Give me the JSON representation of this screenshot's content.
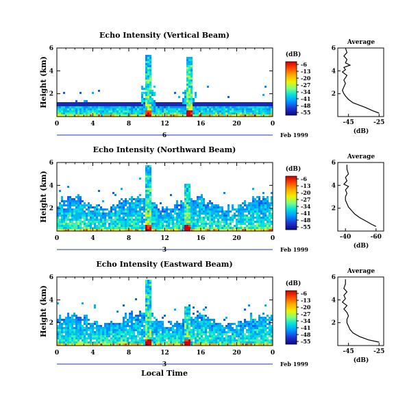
{
  "x_axis_label": "Local Time",
  "date_label": "Feb 1999",
  "chart_data": [
    {
      "type": "heatmap",
      "title": "Echo Intensity (Vertical Beam)",
      "ylabel": "Height (km)",
      "x_ticks": [
        "0",
        "4",
        "8",
        "12",
        "16",
        "20",
        "0"
      ],
      "y_ticks": [
        "2",
        "4",
        "6"
      ],
      "xlim": [
        0,
        24
      ],
      "ylim": [
        0,
        6
      ],
      "day_label": "6",
      "colorbar": {
        "unit": "(dB)",
        "ticks": [
          "-6",
          "-13",
          "-20",
          "-27",
          "-34",
          "-41",
          "-48",
          "-55"
        ]
      },
      "tower_events": [
        {
          "hour": 10,
          "top_km": 5.5
        },
        {
          "hour": 14.6,
          "top_km": 5.3
        }
      ],
      "profile": {
        "title": "Average",
        "xlabel": "(dB)",
        "x_ticks": [
          "-45",
          "-25"
        ],
        "xlim": [
          -52,
          -22
        ],
        "y_ticks": [
          "2",
          "4",
          "6"
        ],
        "ylim": [
          0,
          6
        ],
        "heights": [
          0.3,
          0.5,
          0.8,
          1.0,
          1.2,
          1.5,
          1.8,
          2.0,
          2.3,
          2.6,
          2.9,
          3.2,
          3.4,
          3.6,
          3.9,
          4.1,
          4.3,
          4.5,
          4.7,
          5.0,
          5.3,
          5.6,
          6.0
        ],
        "values": [
          -25,
          -29,
          -34,
          -38,
          -42,
          -45,
          -47,
          -48,
          -49,
          -48,
          -47,
          -48,
          -47,
          -46,
          -49,
          -47,
          -48,
          -44,
          -47,
          -46,
          -48,
          -46,
          -47
        ]
      }
    },
    {
      "type": "heatmap",
      "title": "Echo Intensity (Northward Beam)",
      "ylabel": "Height (km)",
      "x_ticks": [
        "0",
        "4",
        "8",
        "12",
        "16",
        "20",
        "0"
      ],
      "y_ticks": [
        "2",
        "4",
        "6"
      ],
      "xlim": [
        0,
        24
      ],
      "ylim": [
        0,
        6
      ],
      "day_label": "3",
      "colorbar": {
        "unit": "(dB)",
        "ticks": [
          "-6",
          "-13",
          "-20",
          "-27",
          "-34",
          "-41",
          "-48",
          "-55"
        ]
      },
      "tower_events": [
        {
          "hour": 10,
          "top_km": 5.8
        },
        {
          "hour": 14.5,
          "top_km": 4.2
        }
      ],
      "profile": {
        "title": "Average",
        "xlabel": "(dB)",
        "x_ticks": [
          "-40",
          "-60"
        ],
        "xlim": [
          -35,
          -65
        ],
        "y_ticks": [
          "2",
          "4",
          "6"
        ],
        "ylim": [
          0,
          6
        ],
        "heights": [
          0.4,
          0.6,
          0.9,
          1.2,
          1.5,
          1.8,
          2.1,
          2.4,
          2.7,
          3.0,
          3.3,
          3.6,
          3.9,
          4.1,
          4.4,
          4.7,
          5.0,
          5.4,
          5.8
        ],
        "values": [
          -60,
          -57,
          -53,
          -49,
          -46,
          -44,
          -42,
          -41,
          -40,
          -40,
          -41,
          -40,
          -42,
          -39,
          -41,
          -40,
          -42,
          -41,
          -41
        ]
      }
    },
    {
      "type": "heatmap",
      "title": "Echo Intensity (Eastward Beam)",
      "ylabel": "Height (km)",
      "x_ticks": [
        "0",
        "4",
        "8",
        "12",
        "16",
        "20",
        "0"
      ],
      "y_ticks": [
        "2",
        "4",
        "6"
      ],
      "xlim": [
        0,
        24
      ],
      "ylim": [
        0,
        6
      ],
      "day_label": "3",
      "colorbar": {
        "unit": "(dB)",
        "ticks": [
          "-6",
          "-13",
          "-20",
          "-27",
          "-34",
          "-41",
          "-48",
          "-55"
        ]
      },
      "tower_events": [
        {
          "hour": 10,
          "top_km": 5.8
        },
        {
          "hour": 14.3,
          "top_km": 3.5
        }
      ],
      "profile": {
        "title": "Average",
        "xlabel": "(dB)",
        "x_ticks": [
          "-45",
          "-25"
        ],
        "xlim": [
          -52,
          -22
        ],
        "y_ticks": [
          "2",
          "4",
          "6"
        ],
        "ylim": [
          0,
          6
        ],
        "heights": [
          0.3,
          0.5,
          0.8,
          1.1,
          1.4,
          1.7,
          2.0,
          2.3,
          2.6,
          2.9,
          3.2,
          3.5,
          3.8,
          4.1,
          4.4,
          4.7,
          5.0,
          5.4,
          5.8
        ],
        "values": [
          -25,
          -32,
          -38,
          -42,
          -44,
          -45,
          -46,
          -46,
          -45,
          -46,
          -48,
          -46,
          -49,
          -47,
          -48,
          -46,
          -48,
          -47,
          -47
        ]
      }
    }
  ]
}
